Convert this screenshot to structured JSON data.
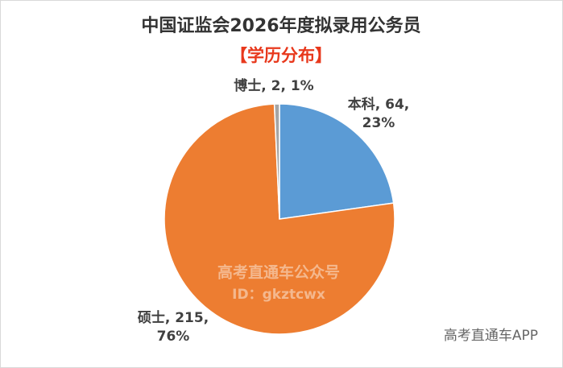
{
  "chart_data": {
    "type": "pie",
    "title": "中国证监会2026年度拟录用公务员",
    "subtitle": "【学历分布】",
    "categories": [
      "本科",
      "硕士",
      "博士"
    ],
    "values": [
      64,
      215,
      2
    ],
    "value_labels": [
      [
        "本科, 64,",
        "23%"
      ],
      [
        "硕士, 215,",
        "76%"
      ],
      [
        "博士, 2, 1%"
      ]
    ],
    "colors": [
      "#5b9bd5",
      "#ed7d31",
      "#a5a5a5"
    ],
    "watermark": [
      "高考直通车公众号",
      "ID：gkztcwx"
    ],
    "footer": "高考直通车APP"
  }
}
